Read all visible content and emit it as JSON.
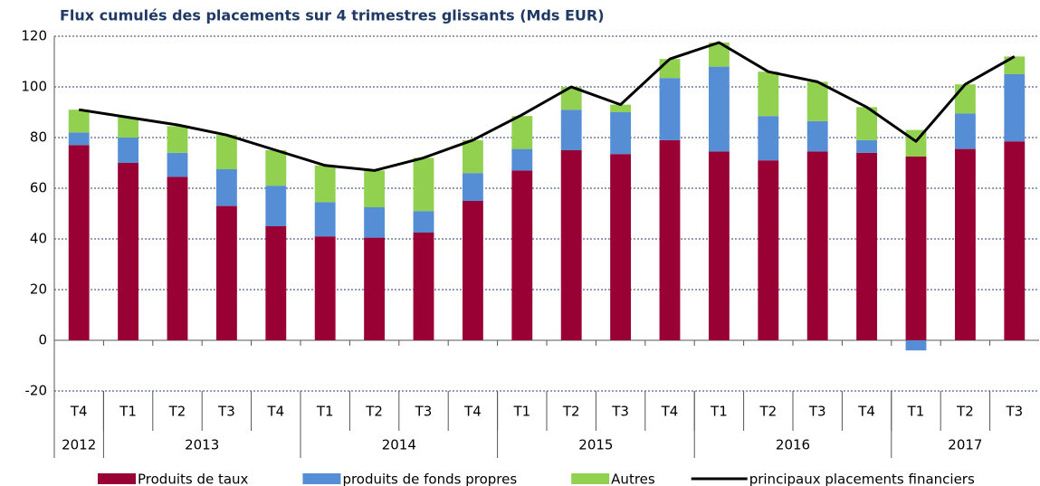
{
  "chart_data": {
    "type": "stacked_bar_line",
    "title": "Flux cumulés des placements sur 4 trimestres glissants (Mds EUR)",
    "categories": [
      "T4",
      "T1",
      "T2",
      "T3",
      "T4",
      "T1",
      "T2",
      "T3",
      "T4",
      "T1",
      "T2",
      "T3",
      "T4",
      "T1",
      "T2",
      "T3",
      "T4",
      "T1",
      "T2",
      "T3"
    ],
    "groups": [
      {
        "label": "2012",
        "span": 1
      },
      {
        "label": "2013",
        "span": 4
      },
      {
        "label": "2014",
        "span": 4
      },
      {
        "label": "2015",
        "span": 4
      },
      {
        "label": "2016",
        "span": 4
      },
      {
        "label": "2017",
        "span": 3
      }
    ],
    "series": [
      {
        "name": "Produits de taux",
        "color": "#990033",
        "kind": "bar",
        "values": [
          77,
          70,
          64.5,
          53,
          45,
          41,
          40.5,
          42.5,
          55,
          67,
          75,
          73.5,
          79,
          74.5,
          71,
          74.5,
          74,
          72.5,
          75.5,
          78.5
        ]
      },
      {
        "name": "produits de fonds propres",
        "color": "#558ed5",
        "kind": "bar",
        "values": [
          5,
          10,
          9.5,
          14.5,
          16,
          13.5,
          12,
          8.5,
          11,
          8.5,
          16,
          16.5,
          24.5,
          33.5,
          17.5,
          12,
          5,
          -4,
          14,
          26.5
        ]
      },
      {
        "name": "Autres",
        "color": "#92d050",
        "kind": "bar",
        "values": [
          9,
          8,
          10.5,
          13.5,
          14,
          14.5,
          14.5,
          21,
          13,
          13,
          9,
          3,
          7.5,
          9.5,
          17.5,
          15.5,
          13,
          10.5,
          11.5,
          7
        ]
      },
      {
        "name": "principaux placements financiers",
        "color": "#000000",
        "kind": "line",
        "values": [
          91,
          88,
          85,
          81,
          75,
          69,
          67,
          72,
          79,
          89,
          100,
          93,
          111,
          117.5,
          106,
          102,
          92,
          78.5,
          101,
          112
        ]
      }
    ],
    "ylim": [
      -20,
      120
    ],
    "yticks": [
      -20,
      0,
      20,
      40,
      60,
      80,
      100,
      120
    ],
    "grid": true,
    "legend": "bottom"
  }
}
